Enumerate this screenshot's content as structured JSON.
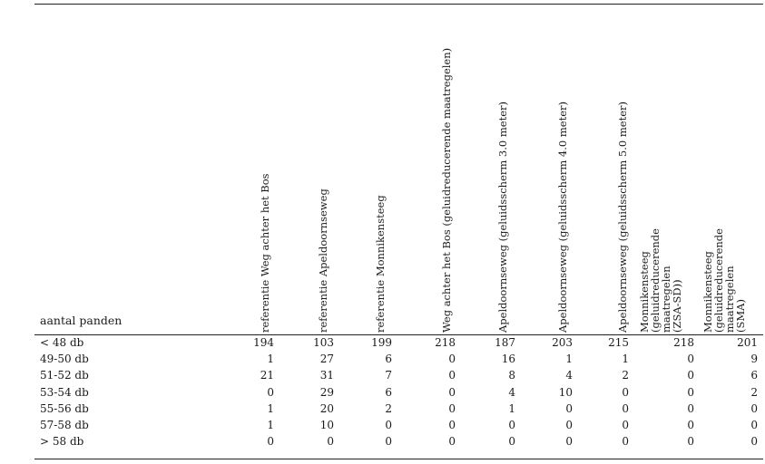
{
  "table": {
    "corner_label": "aantal panden",
    "columns": [
      "referentie Weg achter het Bos",
      "referentie Apeldoornseweg",
      "referentie Monnikensteeg",
      "Weg achter het Bos (geluidreducerende maatregelen)",
      "Apeldoornseweg (geluidsscherm 3.0 meter)",
      "Apeldoornseweg (geluidsscherm 4.0 meter)",
      "Apeldoornseweg (geluidsscherm 5.0 meter)",
      "Monnikensteeg (geluidreducerende maatregelen (ZSA-SD))",
      "Monnikensteeg (geluidreducerende maatregelen (SMA)"
    ],
    "rows": [
      {
        "label": "< 48 db",
        "values": [
          "194",
          "103",
          "199",
          "218",
          "187",
          "203",
          "215",
          "218",
          "201"
        ]
      },
      {
        "label": "49-50 db",
        "values": [
          "1",
          "27",
          "6",
          "0",
          "16",
          "1",
          "1",
          "0",
          "9"
        ]
      },
      {
        "label": "51-52 db",
        "values": [
          "21",
          "31",
          "7",
          "0",
          "8",
          "4",
          "2",
          "0",
          "6"
        ]
      },
      {
        "label": "53-54 db",
        "values": [
          "0",
          "29",
          "6",
          "0",
          "4",
          "10",
          "0",
          "0",
          "2"
        ]
      },
      {
        "label": "55-56 db",
        "values": [
          "1",
          "20",
          "2",
          "0",
          "1",
          "0",
          "0",
          "0",
          "0"
        ]
      },
      {
        "label": "57-58 db",
        "values": [
          "1",
          "10",
          "0",
          "0",
          "0",
          "0",
          "0",
          "0",
          "0"
        ]
      },
      {
        "label": "> 58 db",
        "values": [
          "0",
          "0",
          "0",
          "0",
          "0",
          "0",
          "0",
          "0",
          "0"
        ]
      }
    ]
  }
}
